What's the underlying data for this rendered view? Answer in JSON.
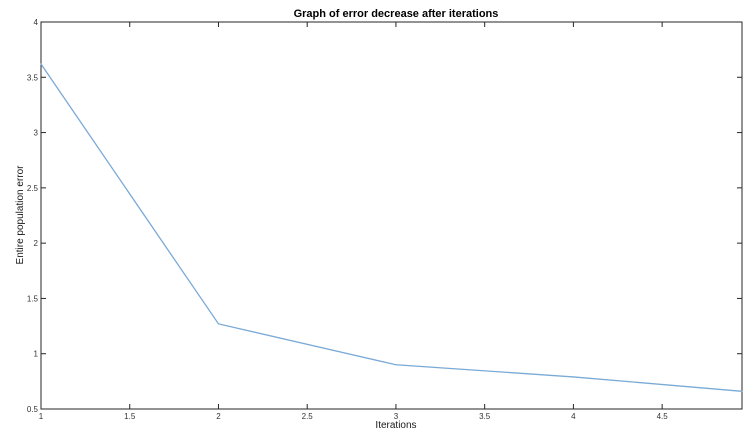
{
  "chart_data": {
    "type": "line",
    "title": "Graph of error decrease after iterations",
    "xlabel": "Iterations",
    "ylabel": "Entire population error",
    "xlim": [
      1,
      4.95
    ],
    "ylim": [
      0.5,
      4
    ],
    "xticks": [
      "1",
      "1.5",
      "2",
      "2.5",
      "3",
      "3.5",
      "4",
      "4.5"
    ],
    "xtick_values": [
      1,
      1.5,
      2,
      2.5,
      3,
      3.5,
      4,
      4.5
    ],
    "yticks": [
      "0.5",
      "1",
      "1.5",
      "2",
      "2.5",
      "3",
      "3.5",
      "4"
    ],
    "ytick_values": [
      0.5,
      1,
      1.5,
      2,
      2.5,
      3,
      3.5,
      4
    ],
    "grid": false,
    "series": [
      {
        "color": "#7aaad6",
        "x": [
          1,
          2,
          3,
          4,
          4.95
        ],
        "y": [
          3.62,
          1.27,
          0.9,
          0.79,
          0.66
        ]
      }
    ]
  }
}
